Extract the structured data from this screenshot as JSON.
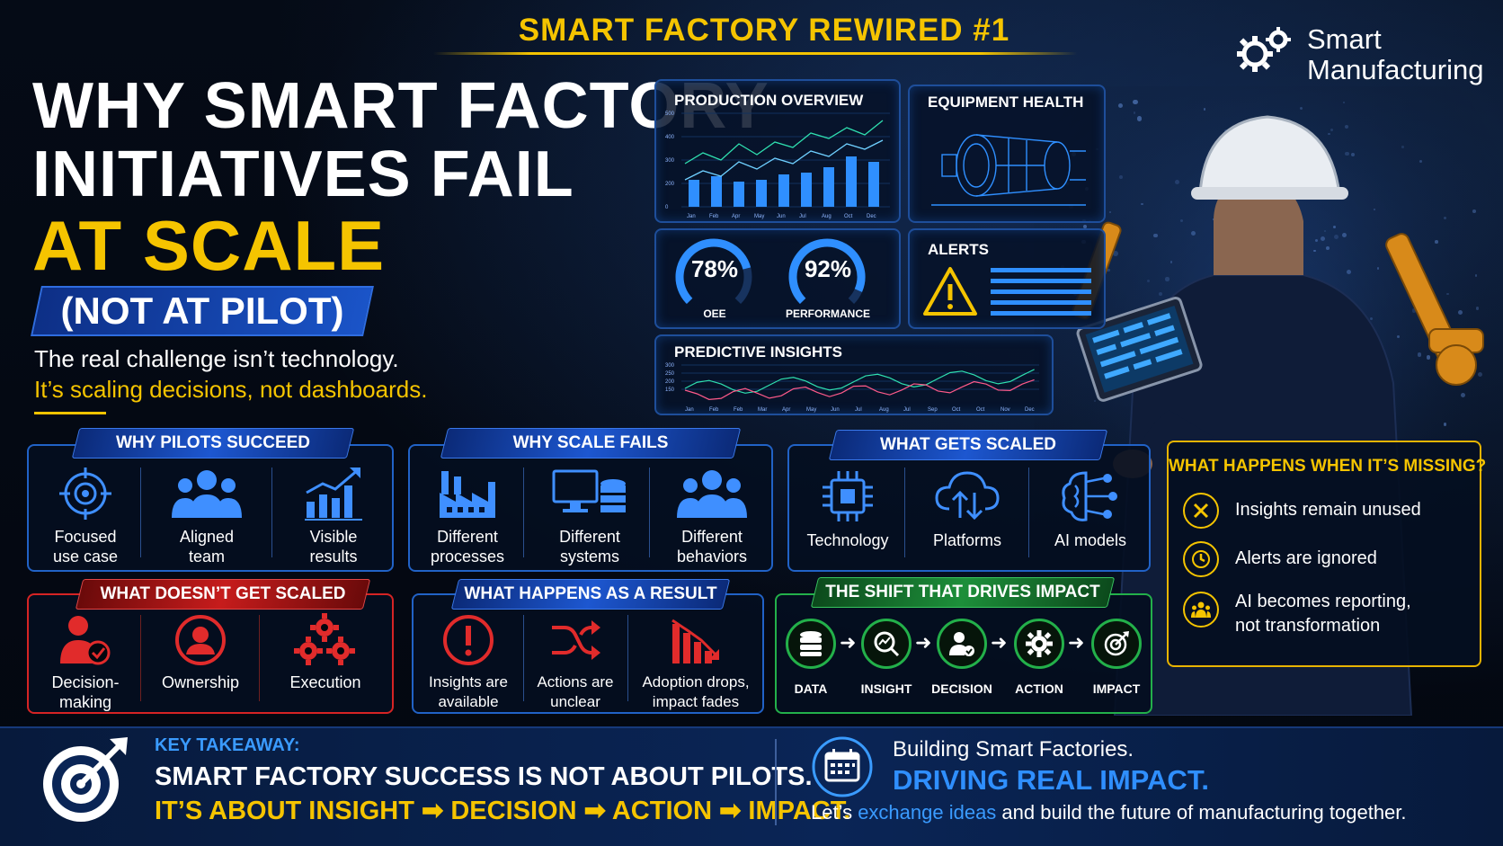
{
  "header": {
    "series_title": "SMART FACTORY REWIRED #1",
    "brand_line1": "Smart",
    "brand_line2": "Manufacturing",
    "brand_icon": "gears-icon"
  },
  "hero": {
    "line1": "WHY SMART FACTORY",
    "line2": "INITIATIVES FAIL",
    "line3": "AT SCALE",
    "pill": "(NOT AT PILOT)",
    "intro1": "The real challenge isn’t technology.",
    "intro2": "It’s scaling decisions, not dashboards."
  },
  "dashboard": {
    "production": {
      "title": "PRODUCTION OVERVIEW",
      "y_ticks": [
        "500",
        "400",
        "300",
        "200",
        "0"
      ],
      "months": [
        "Jan",
        "Feb",
        "Apr",
        "May",
        "Jun",
        "Jul",
        "Aug",
        "Oct",
        "Dec"
      ]
    },
    "equipment": {
      "title": "EQUIPMENT HEALTH"
    },
    "gauges": [
      {
        "value": "78%",
        "label": "OEE",
        "fraction": 0.78
      },
      {
        "value": "92%",
        "label": "PERFORMANCE",
        "fraction": 0.92
      }
    ],
    "alerts": {
      "title": "ALERTS"
    },
    "predictive": {
      "title": "PREDICTIVE INSIGHTS",
      "months": [
        "Jan",
        "Feb",
        "Feb",
        "Mar",
        "Apr",
        "May",
        "Jun",
        "Jul",
        "Aug",
        "Jul",
        "Sep",
        "Oct",
        "Oct",
        "Nov",
        "Dec"
      ]
    }
  },
  "pilots_succeed": {
    "title": "WHY PILOTS SUCCEED",
    "items": [
      {
        "icon": "target-icon",
        "line1": "Focused",
        "line2": "use case"
      },
      {
        "icon": "team-icon",
        "line1": "Aligned",
        "line2": "team"
      },
      {
        "icon": "growth-chart-icon",
        "line1": "Visible",
        "line2": "results"
      }
    ]
  },
  "scale_fails": {
    "title": "WHY SCALE FAILS",
    "items": [
      {
        "icon": "factory-icon",
        "line1": "Different",
        "line2": "processes"
      },
      {
        "icon": "systems-icon",
        "line1": "Different",
        "line2": "systems"
      },
      {
        "icon": "people-icon",
        "line1": "Different",
        "line2": "behaviors"
      }
    ]
  },
  "gets_scaled": {
    "title": "WHAT GETS SCALED",
    "items": [
      {
        "icon": "chip-icon",
        "line1": "Technology"
      },
      {
        "icon": "cloud-icon",
        "line1": "Platforms"
      },
      {
        "icon": "brain-icon",
        "line1": "AI models"
      }
    ]
  },
  "not_scaled": {
    "title": "WHAT DOESN’T GET SCALED",
    "items": [
      {
        "icon": "decision-person-icon",
        "line1": "Decision-",
        "line2": "making"
      },
      {
        "icon": "owner-icon",
        "line1": "Ownership"
      },
      {
        "icon": "gears-icon",
        "line1": "Execution"
      }
    ]
  },
  "result": {
    "title": "WHAT HAPPENS AS A RESULT",
    "items": [
      {
        "icon": "exclamation-icon",
        "line1": "Insights are",
        "line2": "available"
      },
      {
        "icon": "shuffle-icon",
        "line1": "Actions are",
        "line2": "unclear"
      },
      {
        "icon": "declining-chart-icon",
        "line1": "Adoption drops,",
        "line2": "impact fades"
      }
    ]
  },
  "shift": {
    "title": "THE SHIFT THAT DRIVES IMPACT",
    "steps": [
      {
        "icon": "database-icon",
        "label": "DATA"
      },
      {
        "icon": "insight-icon",
        "label": "INSIGHT"
      },
      {
        "icon": "decision-icon",
        "label": "DECISION"
      },
      {
        "icon": "gear-icon",
        "label": "ACTION"
      },
      {
        "icon": "target-icon",
        "label": "IMPACT"
      }
    ]
  },
  "missing": {
    "title": "WHAT HAPPENS WHEN IT’S MISSING?",
    "items": [
      {
        "icon": "x-icon",
        "line1": "Insights remain unused"
      },
      {
        "icon": "clock-icon",
        "line1": "Alerts are ignored"
      },
      {
        "icon": "group-icon",
        "line1": "AI becomes reporting,",
        "line2": "not transformation"
      }
    ]
  },
  "footer": {
    "takeaway_label": "KEY TAKEAWAY:",
    "takeaway1": "SMART FACTORY SUCCESS IS NOT ABOUT PILOTS.",
    "takeaway2": "IT’S ABOUT INSIGHT ➡ DECISION ➡ ACTION ➡ IMPACT.",
    "cta1": "Building Smart Factories.",
    "cta2": "DRIVING REAL IMPACT.",
    "cta3_pre": "Let’s ",
    "cta3_highlight": "exchange ideas",
    "cta3_post": " and build the future of manufacturing together."
  },
  "colors": {
    "accent_yellow": "#f5c400",
    "accent_blue": "#2f8fff",
    "red": "#d62424",
    "green": "#23b04a"
  }
}
